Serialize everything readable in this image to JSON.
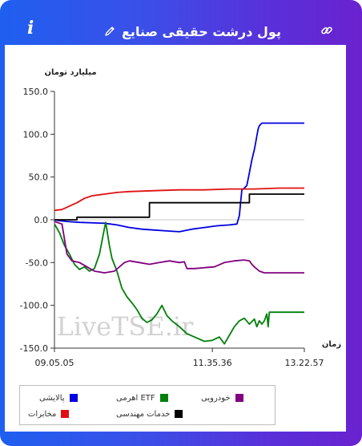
{
  "header": {
    "title": "پول درشت حقیقی صنایع",
    "info_glyph": "i"
  },
  "colors": {
    "header_start": "#1f5ff0",
    "header_end": "#6a22cf"
  },
  "watermark": "LiveTSE.ir",
  "chart_data": {
    "type": "line",
    "ylabel": "میلیارد تومان",
    "xlabel": "زمان",
    "ylim": [
      -150,
      150
    ],
    "yticks": [
      150,
      100,
      50,
      0,
      -50,
      -100,
      -150
    ],
    "ytick_labels": [
      "150.0",
      "100.0",
      "50.0",
      "0.0",
      "-50.0",
      "-100.0",
      "-150.0"
    ],
    "x_range": [
      0,
      1
    ],
    "xticks": [
      0,
      0.632,
      1
    ],
    "xtick_labels": [
      "09.05.05",
      "11.35.36",
      "13.22.57"
    ],
    "grid": false,
    "legend": "bottom",
    "series": [
      {
        "name": "پالایشی",
        "color": "#0000e0",
        "points": [
          [
            0,
            0
          ],
          [
            0.02,
            -1
          ],
          [
            0.05,
            -2
          ],
          [
            0.1,
            -3
          ],
          [
            0.2,
            -4
          ],
          [
            0.25,
            -6
          ],
          [
            0.3,
            -9
          ],
          [
            0.35,
            -11
          ],
          [
            0.4,
            -12
          ],
          [
            0.45,
            -13
          ],
          [
            0.5,
            -14
          ],
          [
            0.55,
            -11
          ],
          [
            0.6,
            -9
          ],
          [
            0.65,
            -7
          ],
          [
            0.7,
            -6
          ],
          [
            0.73,
            -5
          ],
          [
            0.74,
            5
          ],
          [
            0.745,
            20
          ],
          [
            0.75,
            35
          ],
          [
            0.76,
            37
          ],
          [
            0.77,
            40
          ],
          [
            0.78,
            55
          ],
          [
            0.79,
            70
          ],
          [
            0.8,
            82
          ],
          [
            0.805,
            90
          ],
          [
            0.81,
            98
          ],
          [
            0.815,
            106
          ],
          [
            0.82,
            110
          ],
          [
            0.83,
            113
          ],
          [
            0.9,
            113
          ],
          [
            1.0,
            113
          ]
        ]
      },
      {
        "name": "ETF اهرمی",
        "color": "#00800a",
        "points": [
          [
            0,
            -5
          ],
          [
            0.02,
            -15
          ],
          [
            0.04,
            -30
          ],
          [
            0.06,
            -40
          ],
          [
            0.08,
            -52
          ],
          [
            0.1,
            -58
          ],
          [
            0.12,
            -55
          ],
          [
            0.14,
            -60
          ],
          [
            0.16,
            -57
          ],
          [
            0.18,
            -40
          ],
          [
            0.19,
            -25
          ],
          [
            0.2,
            -10
          ],
          [
            0.205,
            -3
          ],
          [
            0.21,
            -12
          ],
          [
            0.22,
            -30
          ],
          [
            0.23,
            -45
          ],
          [
            0.25,
            -60
          ],
          [
            0.27,
            -80
          ],
          [
            0.29,
            -90
          ],
          [
            0.31,
            -97
          ],
          [
            0.33,
            -105
          ],
          [
            0.35,
            -115
          ],
          [
            0.37,
            -120
          ],
          [
            0.39,
            -117
          ],
          [
            0.41,
            -110
          ],
          [
            0.43,
            -100
          ],
          [
            0.45,
            -112
          ],
          [
            0.47,
            -118
          ],
          [
            0.5,
            -125
          ],
          [
            0.53,
            -133
          ],
          [
            0.56,
            -137
          ],
          [
            0.6,
            -142
          ],
          [
            0.63,
            -141
          ],
          [
            0.66,
            -137
          ],
          [
            0.68,
            -145
          ],
          [
            0.7,
            -135
          ],
          [
            0.72,
            -125
          ],
          [
            0.74,
            -118
          ],
          [
            0.76,
            -115
          ],
          [
            0.78,
            -122
          ],
          [
            0.8,
            -116
          ],
          [
            0.81,
            -125
          ],
          [
            0.82,
            -118
          ],
          [
            0.83,
            -122
          ],
          [
            0.84,
            -118
          ],
          [
            0.85,
            -110
          ],
          [
            0.855,
            -125
          ],
          [
            0.86,
            -108
          ],
          [
            0.87,
            -108
          ],
          [
            0.9,
            -108
          ],
          [
            1.0,
            -108
          ]
        ]
      },
      {
        "name": "خودرویی",
        "color": "#800080",
        "points": [
          [
            0,
            -2
          ],
          [
            0.03,
            -5
          ],
          [
            0.05,
            -40
          ],
          [
            0.07,
            -48
          ],
          [
            0.1,
            -50
          ],
          [
            0.13,
            -55
          ],
          [
            0.16,
            -60
          ],
          [
            0.2,
            -62
          ],
          [
            0.24,
            -60
          ],
          [
            0.28,
            -50
          ],
          [
            0.3,
            -48
          ],
          [
            0.34,
            -50
          ],
          [
            0.38,
            -52
          ],
          [
            0.42,
            -50
          ],
          [
            0.46,
            -48
          ],
          [
            0.5,
            -50
          ],
          [
            0.52,
            -49
          ],
          [
            0.53,
            -57
          ],
          [
            0.56,
            -57
          ],
          [
            0.6,
            -56
          ],
          [
            0.64,
            -55
          ],
          [
            0.68,
            -50
          ],
          [
            0.72,
            -48
          ],
          [
            0.76,
            -47
          ],
          [
            0.78,
            -48
          ],
          [
            0.79,
            -52
          ],
          [
            0.8,
            -55
          ],
          [
            0.82,
            -60
          ],
          [
            0.84,
            -62
          ],
          [
            0.9,
            -62
          ],
          [
            1.0,
            -62
          ]
        ]
      },
      {
        "name": "مخابرات",
        "color": "#e01010",
        "points": [
          [
            0,
            11
          ],
          [
            0.03,
            12
          ],
          [
            0.06,
            16
          ],
          [
            0.09,
            20
          ],
          [
            0.12,
            25
          ],
          [
            0.15,
            28
          ],
          [
            0.2,
            30
          ],
          [
            0.25,
            32
          ],
          [
            0.3,
            33
          ],
          [
            0.4,
            34
          ],
          [
            0.5,
            35
          ],
          [
            0.6,
            35
          ],
          [
            0.7,
            36
          ],
          [
            0.8,
            36
          ],
          [
            0.9,
            37
          ],
          [
            1.0,
            37
          ]
        ]
      },
      {
        "name": "خدمات مهندسی",
        "color": "#000000",
        "points": [
          [
            0,
            0
          ],
          [
            0.09,
            0
          ],
          [
            0.09,
            3
          ],
          [
            0.38,
            3
          ],
          [
            0.38,
            12
          ],
          [
            0.38,
            20
          ],
          [
            0.62,
            20
          ],
          [
            0.78,
            20
          ],
          [
            0.78,
            30
          ],
          [
            1.0,
            30
          ]
        ]
      }
    ]
  }
}
